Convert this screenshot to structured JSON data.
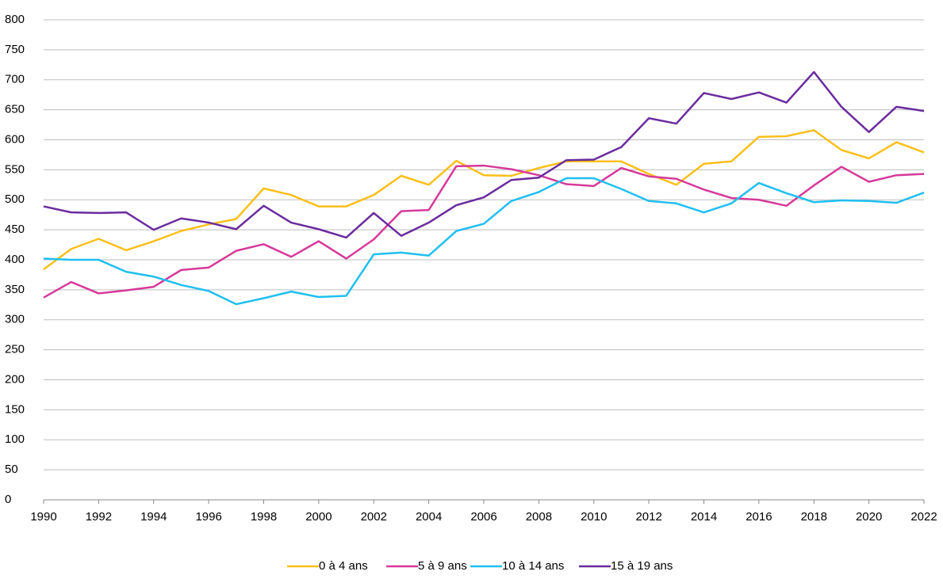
{
  "chart_data": {
    "type": "line",
    "x": [
      1990,
      1991,
      1992,
      1993,
      1994,
      1995,
      1996,
      1997,
      1998,
      1999,
      2000,
      2001,
      2002,
      2003,
      2004,
      2005,
      2006,
      2007,
      2008,
      2009,
      2010,
      2011,
      2012,
      2013,
      2014,
      2015,
      2016,
      2017,
      2018,
      2019,
      2020,
      2021,
      2022
    ],
    "series": [
      {
        "name": "0 à 4 ans",
        "color": "#fbbf1a",
        "values": [
          384,
          418,
          435,
          416,
          431,
          448,
          459,
          468,
          519,
          508,
          489,
          489,
          508,
          540,
          525,
          565,
          541,
          540,
          553,
          564,
          564,
          564,
          543,
          525,
          560,
          564,
          605,
          606,
          616,
          583,
          569,
          596,
          579
        ]
      },
      {
        "name": "5 à 9 ans",
        "color": "#d6399a",
        "values": [
          337,
          363,
          344,
          349,
          355,
          383,
          387,
          415,
          426,
          405,
          431,
          402,
          434,
          481,
          483,
          556,
          557,
          551,
          541,
          526,
          523,
          553,
          539,
          535,
          517,
          503,
          500,
          490,
          524,
          555,
          530,
          541,
          543
        ]
      },
      {
        "name": "10 à 14 ans",
        "color": "#1fbff0",
        "values": [
          402,
          400,
          400,
          380,
          372,
          358,
          348,
          326,
          336,
          347,
          338,
          340,
          409,
          412,
          407,
          448,
          460,
          498,
          513,
          536,
          536,
          518,
          498,
          494,
          479,
          494,
          528,
          511,
          496,
          499,
          498,
          495,
          512
        ]
      },
      {
        "name": "15 à 19 ans",
        "color": "#6a2c9e",
        "values": [
          489,
          479,
          478,
          479,
          450,
          469,
          462,
          451,
          490,
          462,
          451,
          437,
          478,
          440,
          462,
          491,
          504,
          533,
          537,
          566,
          567,
          588,
          636,
          627,
          678,
          668,
          679,
          662,
          713,
          655,
          613,
          655,
          648
        ]
      }
    ],
    "xlim": [
      1990,
      2022
    ],
    "xticks": [
      1990,
      1992,
      1994,
      1996,
      1998,
      2000,
      2002,
      2004,
      2006,
      2008,
      2010,
      2012,
      2014,
      2016,
      2018,
      2020,
      2022
    ],
    "ylim": [
      0,
      800
    ],
    "yticks": [
      0,
      50,
      100,
      150,
      200,
      250,
      300,
      350,
      400,
      450,
      500,
      550,
      600,
      650,
      700,
      750,
      800
    ],
    "grid": true,
    "legend": "bottom"
  }
}
